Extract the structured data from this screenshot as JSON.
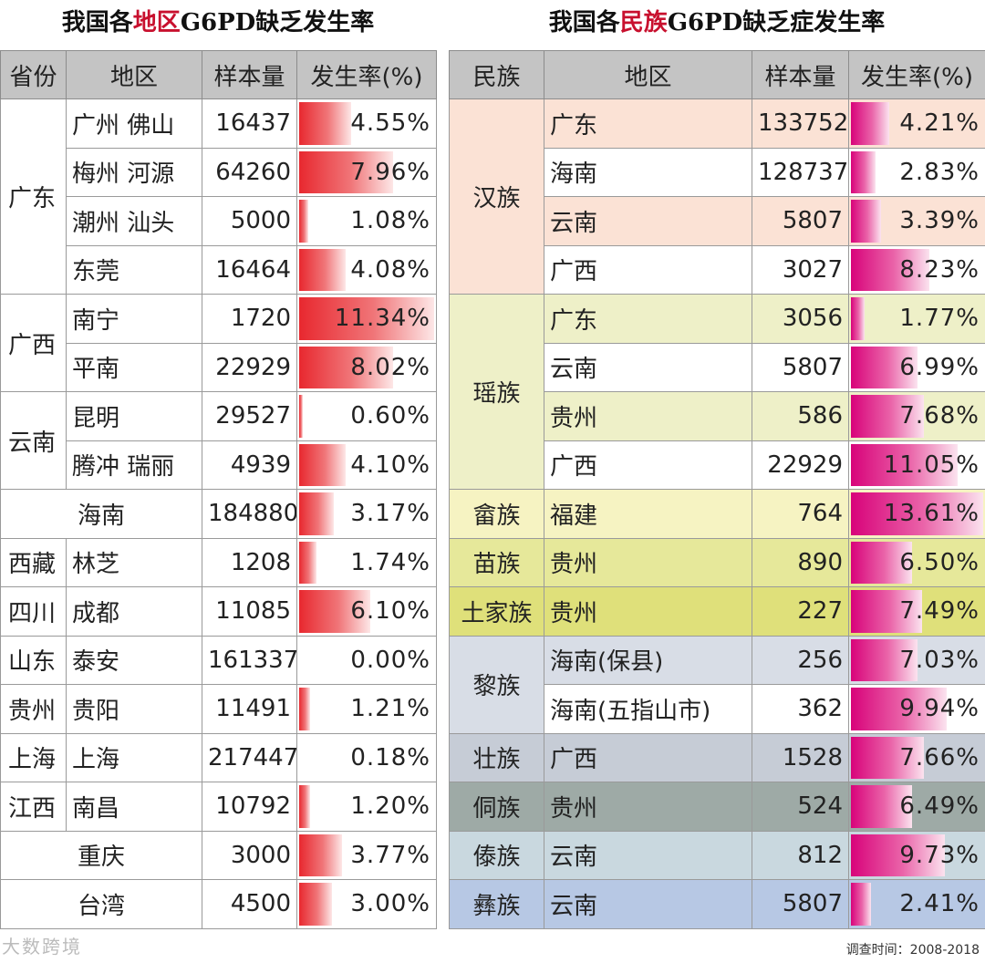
{
  "left": {
    "title_pre": "我国各",
    "title_hl": "地区",
    "title_post": "G6PD缺乏发生率",
    "headers": [
      "省份",
      "地区",
      "样本量",
      "发生率(%)"
    ],
    "groups": [
      {
        "province": "广东",
        "rows": [
          {
            "region": "广州  佛山",
            "sample": "16437",
            "rate": "4.55%",
            "value": 4.55
          },
          {
            "region": "梅州  河源",
            "sample": "64260",
            "rate": "7.96%",
            "value": 7.96
          },
          {
            "region": "潮州  汕头",
            "sample": "5000",
            "rate": "1.08%",
            "value": 1.08
          },
          {
            "region": "东莞",
            "sample": "16464",
            "rate": "4.08%",
            "value": 4.08
          }
        ]
      },
      {
        "province": "广西",
        "rows": [
          {
            "region": "南宁",
            "sample": "1720",
            "rate": "11.34%",
            "value": 11.34
          },
          {
            "region": "平南",
            "sample": "22929",
            "rate": "8.02%",
            "value": 8.02
          }
        ]
      },
      {
        "province": "云南",
        "rows": [
          {
            "region": "昆明",
            "sample": "29527",
            "rate": "0.60%",
            "value": 0.6
          },
          {
            "region": "腾冲  瑞丽",
            "sample": "4939",
            "rate": "4.10%",
            "value": 4.1
          }
        ]
      },
      {
        "province": "",
        "merged": true,
        "rows": [
          {
            "region": "海南",
            "sample": "184880",
            "rate": "3.17%",
            "value": 3.17
          }
        ]
      },
      {
        "province": "西藏",
        "rows": [
          {
            "region": "林芝",
            "sample": "1208",
            "rate": "1.74%",
            "value": 1.74
          }
        ]
      },
      {
        "province": "四川",
        "rows": [
          {
            "region": "成都",
            "sample": "11085",
            "rate": "6.10%",
            "value": 6.1
          }
        ]
      },
      {
        "province": "山东",
        "rows": [
          {
            "region": "泰安",
            "sample": "161337",
            "rate": "0.00%",
            "value": 0.0
          }
        ]
      },
      {
        "province": "贵州",
        "rows": [
          {
            "region": "贵阳",
            "sample": "11491",
            "rate": "1.21%",
            "value": 1.21
          }
        ]
      },
      {
        "province": "上海",
        "rows": [
          {
            "region": "上海",
            "sample": "217447",
            "rate": "0.18%",
            "value": 0.18
          }
        ]
      },
      {
        "province": "江西",
        "rows": [
          {
            "region": "南昌",
            "sample": "10792",
            "rate": "1.20%",
            "value": 1.2
          }
        ]
      },
      {
        "province": "",
        "merged": true,
        "rows": [
          {
            "region": "重庆",
            "sample": "3000",
            "rate": "3.77%",
            "value": 3.77
          }
        ]
      },
      {
        "province": "",
        "merged": true,
        "rows": [
          {
            "region": "台湾",
            "sample": "4500",
            "rate": "3.00%",
            "value": 3.0
          }
        ]
      }
    ]
  },
  "right": {
    "title_pre": "我国各",
    "title_hl": "民族",
    "title_post": "G6PD缺乏症发生率",
    "headers": [
      "民族",
      "地区",
      "样本量",
      "发生率(%)"
    ],
    "groups": [
      {
        "ethnic": "汉族",
        "bg": "#fbe2d5",
        "rows": [
          {
            "region": "广东",
            "sample": "133752",
            "rate": "4.21%",
            "value": 4.21,
            "tint": true
          },
          {
            "region": "海南",
            "sample": "128737",
            "rate": "2.83%",
            "value": 2.83,
            "tint": false
          },
          {
            "region": "云南",
            "sample": "5807",
            "rate": "3.39%",
            "value": 3.39,
            "tint": true
          },
          {
            "region": "广西",
            "sample": "3027",
            "rate": "8.23%",
            "value": 8.23,
            "tint": false
          }
        ]
      },
      {
        "ethnic": "瑶族",
        "bg": "#eef0c8",
        "rows": [
          {
            "region": "广东",
            "sample": "3056",
            "rate": "1.77%",
            "value": 1.77,
            "tint": true
          },
          {
            "region": "云南",
            "sample": "5807",
            "rate": "6.99%",
            "value": 6.99,
            "tint": false
          },
          {
            "region": "贵州",
            "sample": "586",
            "rate": "7.68%",
            "value": 7.68,
            "tint": true
          },
          {
            "region": "广西",
            "sample": "22929",
            "rate": "11.05%",
            "value": 11.05,
            "tint": false
          }
        ]
      },
      {
        "ethnic": "畲族",
        "bg": "#f6f3c2",
        "rows": [
          {
            "region": "福建",
            "sample": "764",
            "rate": "13.61%",
            "value": 13.61,
            "tint": true
          }
        ]
      },
      {
        "ethnic": "苗族",
        "bg": "#e6e89a",
        "rows": [
          {
            "region": "贵州",
            "sample": "890",
            "rate": "6.50%",
            "value": 6.5,
            "tint": true
          }
        ]
      },
      {
        "ethnic": "土家族",
        "bg": "#dfe07a",
        "rows": [
          {
            "region": "贵州",
            "sample": "227",
            "rate": "7.49%",
            "value": 7.49,
            "tint": true
          }
        ]
      },
      {
        "ethnic": "黎族",
        "bg": "#d8dde6",
        "rows": [
          {
            "region": "海南(保县)",
            "sample": "256",
            "rate": "7.03%",
            "value": 7.03,
            "tint": true
          },
          {
            "region": "海南(五指山市)",
            "sample": "362",
            "rate": "9.94%",
            "value": 9.94,
            "tint": false
          }
        ]
      },
      {
        "ethnic": "壮族",
        "bg": "#c6ccd6",
        "rows": [
          {
            "region": "广西",
            "sample": "1528",
            "rate": "7.66%",
            "value": 7.66,
            "tint": true
          }
        ]
      },
      {
        "ethnic": "侗族",
        "bg": "#9eaaa6",
        "rows": [
          {
            "region": "贵州",
            "sample": "524",
            "rate": "6.49%",
            "value": 6.49,
            "tint": true
          }
        ]
      },
      {
        "ethnic": "傣族",
        "bg": "#c9d8df",
        "rows": [
          {
            "region": "云南",
            "sample": "812",
            "rate": "9.73%",
            "value": 9.73,
            "tint": true
          }
        ]
      },
      {
        "ethnic": "彝族",
        "bg": "#b7c8e4",
        "rows": [
          {
            "region": "云南",
            "sample": "5807",
            "rate": "2.41%",
            "value": 2.41,
            "tint": true
          }
        ]
      }
    ]
  },
  "footer": {
    "logo": "大数跨境",
    "date": "调查时间：2008-2018"
  }
}
